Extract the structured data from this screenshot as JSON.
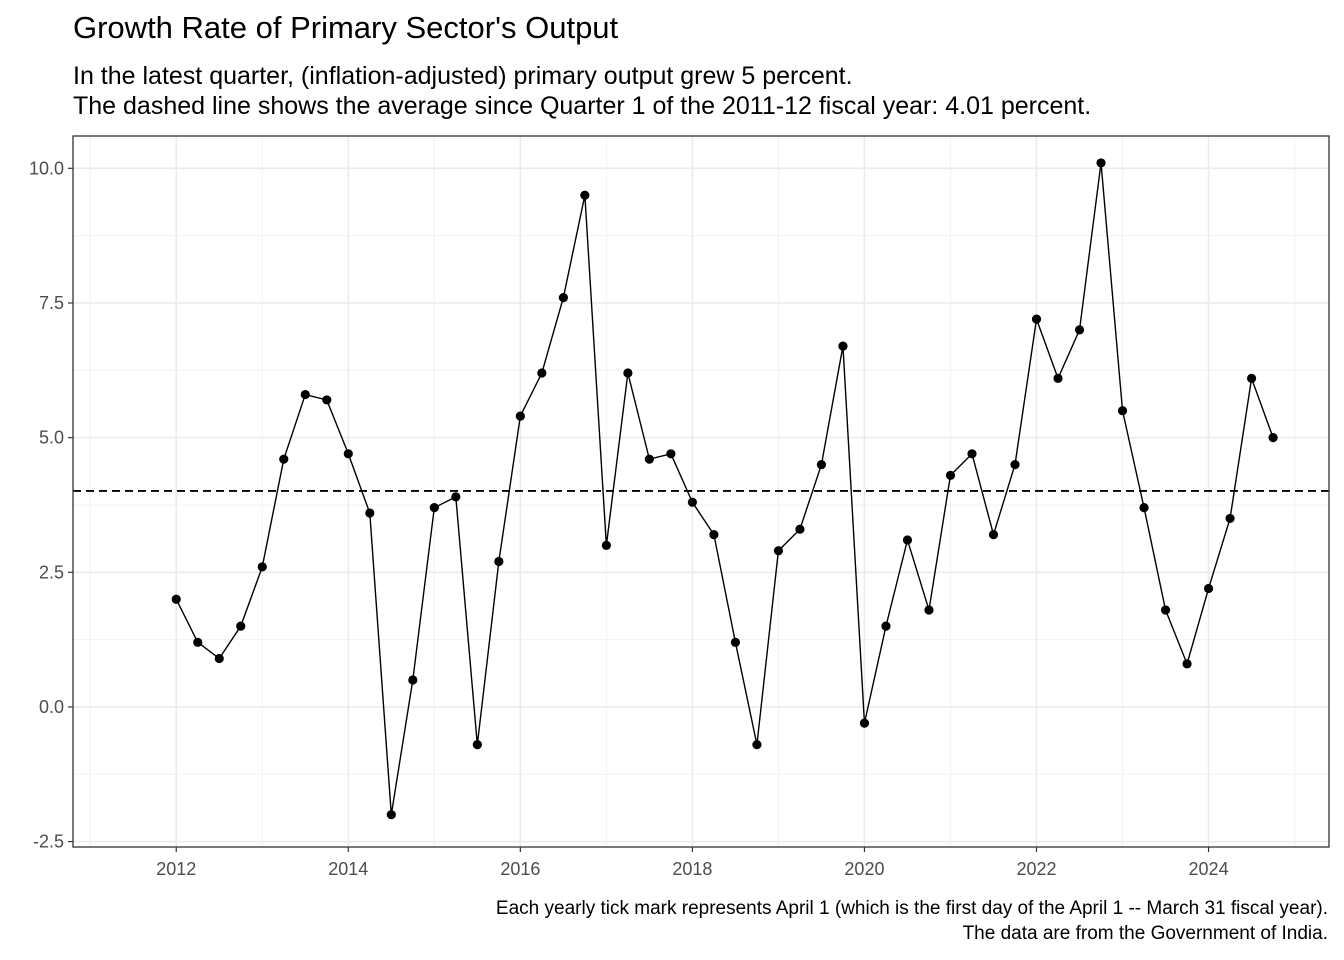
{
  "chart_data": {
    "type": "line",
    "title": "Growth Rate of Primary Sector's Output",
    "subtitle_lines": [
      "In the latest quarter, (inflation-adjusted) primary output grew 5 percent.",
      "The dashed line shows the average since Quarter 1 of the 2011-12 fiscal year: 4.01 percent."
    ],
    "caption_lines": [
      "Each yearly tick mark represents April 1 (which is the first day of the April 1 -- March 31 fiscal year).",
      "The data are from the Government of India."
    ],
    "xlabel": "",
    "ylabel": "",
    "xlim": [
      2010.8,
      2025.4
    ],
    "ylim": [
      -2.6,
      10.6
    ],
    "x_ticks": [
      2012,
      2014,
      2016,
      2018,
      2020,
      2022,
      2024
    ],
    "y_ticks": [
      -2.5,
      0.0,
      2.5,
      5.0,
      7.5,
      10.0
    ],
    "y_tick_labels": [
      "-2.5",
      "0.0",
      "2.5",
      "5.0",
      "7.5",
      "10.0"
    ],
    "grid": true,
    "reference_line": {
      "y": 4.01,
      "style": "dashed"
    },
    "series": [
      {
        "x": [
          2012.0,
          2012.25,
          2012.5,
          2012.75,
          2013.0,
          2013.25,
          2013.5,
          2013.75,
          2014.0,
          2014.25,
          2014.5,
          2014.75,
          2015.0,
          2015.25,
          2015.5,
          2015.75,
          2016.0,
          2016.25,
          2016.5,
          2016.75,
          2017.0,
          2017.25,
          2017.5,
          2017.75,
          2018.0,
          2018.25,
          2018.5,
          2018.75,
          2019.0,
          2019.25,
          2019.5,
          2019.75,
          2020.0,
          2020.25,
          2020.5,
          2020.75,
          2021.0,
          2021.25,
          2021.5,
          2021.75,
          2022.0,
          2022.25,
          2022.5,
          2022.75,
          2023.0,
          2023.25,
          2023.5,
          2023.75,
          2024.0,
          2024.25,
          2024.5,
          2024.75
        ],
        "values": [
          2.0,
          1.2,
          0.9,
          1.5,
          2.6,
          4.6,
          5.8,
          5.7,
          4.7,
          3.6,
          -2.0,
          0.5,
          3.7,
          3.9,
          -0.7,
          2.7,
          5.4,
          6.2,
          7.6,
          9.5,
          3.0,
          6.2,
          4.6,
          4.7,
          3.8,
          3.2,
          1.2,
          -0.7,
          2.9,
          3.3,
          4.5,
          6.7,
          -0.3,
          1.5,
          3.1,
          1.8,
          4.3,
          4.7,
          3.2,
          4.5,
          7.2,
          6.1,
          7.0,
          10.1,
          5.5,
          3.7,
          1.8,
          0.8,
          2.2,
          3.5,
          6.1,
          5.0
        ]
      }
    ]
  }
}
